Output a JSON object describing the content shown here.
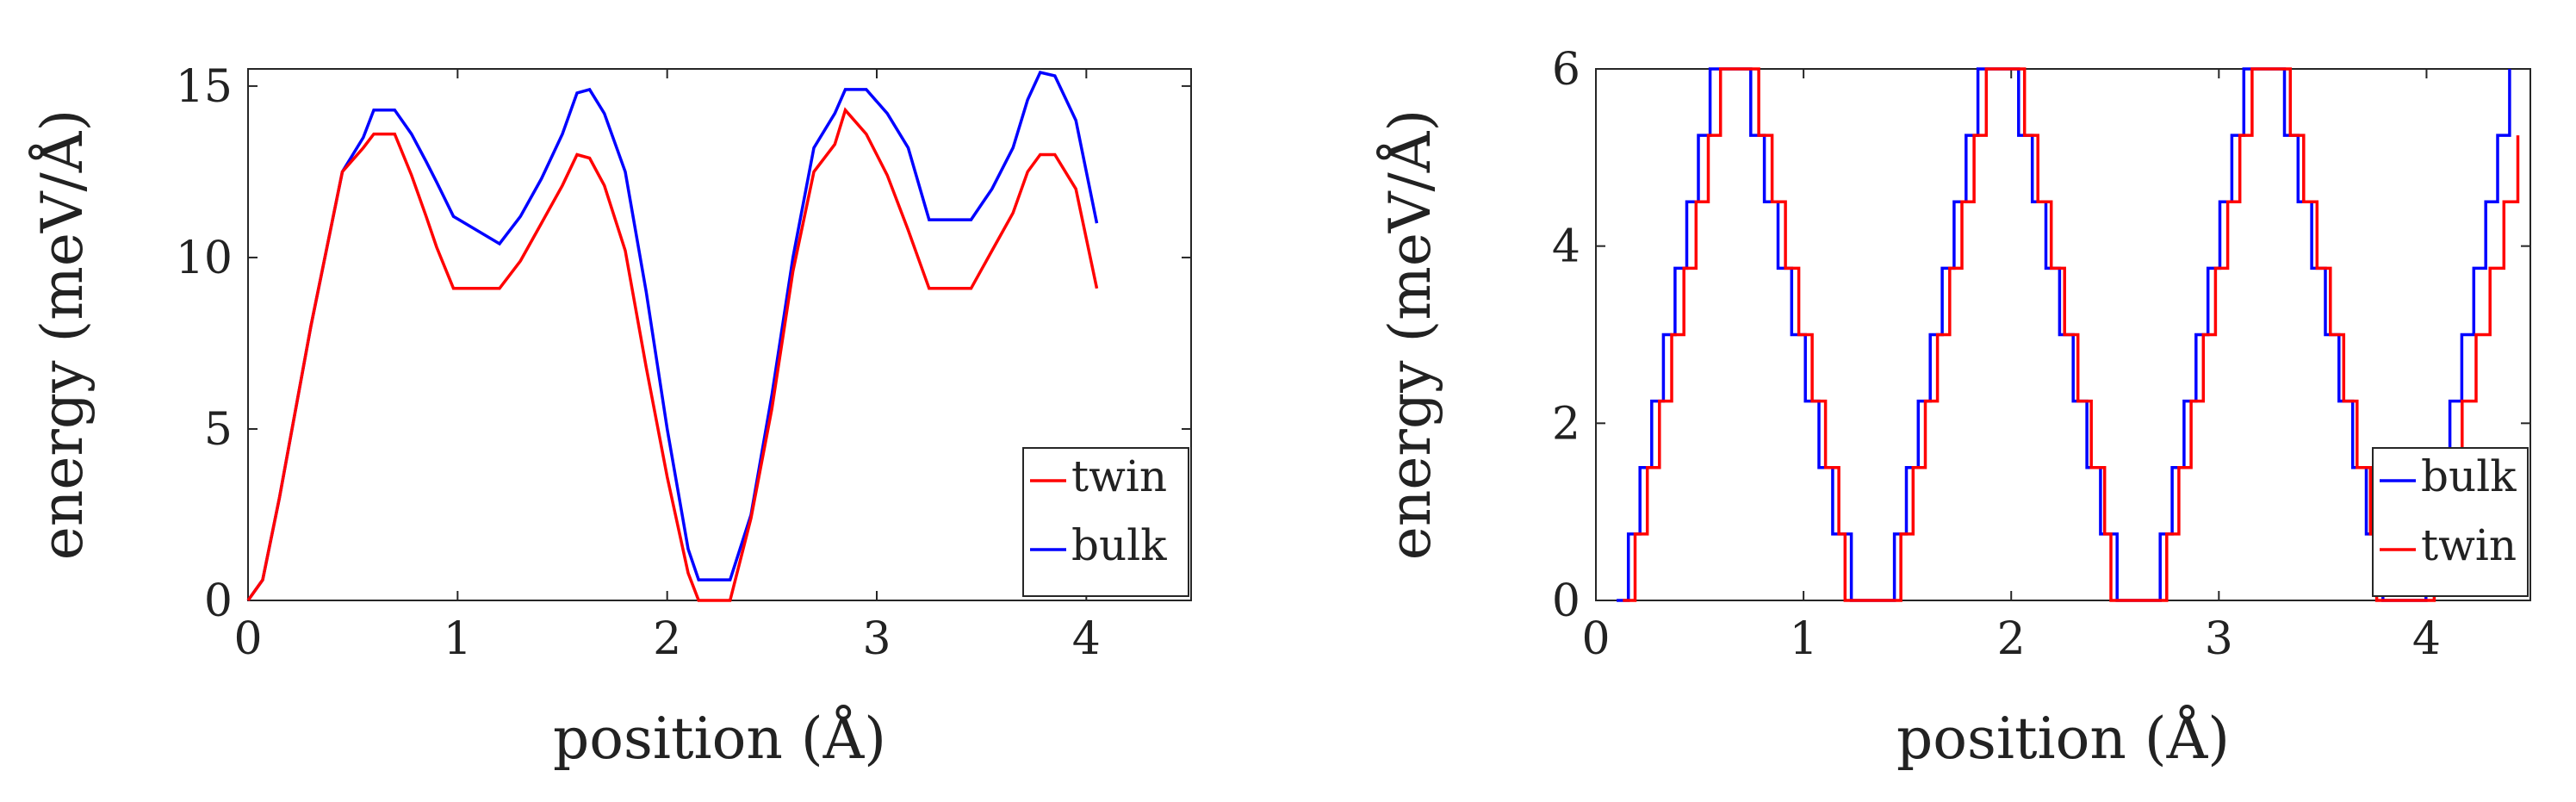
{
  "chart_data": [
    {
      "type": "line",
      "xlabel": "position (Å)",
      "ylabel": "energy (meV/Å)",
      "xlim": [
        0,
        4.5
      ],
      "ylim": [
        0,
        15.5
      ],
      "xticks": [
        0,
        1,
        2,
        3,
        4
      ],
      "yticks": [
        0,
        5,
        10,
        15
      ],
      "xtick_labels": [
        "0",
        "1",
        "2",
        "3",
        "4"
      ],
      "ytick_labels": [
        "0",
        "5",
        "10",
        "15"
      ],
      "legend": {
        "placement": "bottom-right",
        "entries": [
          "twin",
          "bulk"
        ]
      },
      "series": [
        {
          "name": "bulk",
          "color": "#0000ff",
          "x": [
            0,
            0.07,
            0.15,
            0.3,
            0.45,
            0.55,
            0.6,
            0.7,
            0.78,
            0.85,
            0.9,
            0.98,
            1.2,
            1.3,
            1.4,
            1.5,
            1.57,
            1.63,
            1.7,
            1.8,
            1.9,
            2.0,
            2.1,
            2.15,
            2.3,
            2.4,
            2.5,
            2.6,
            2.7,
            2.8,
            2.85,
            2.95,
            3.05,
            3.15,
            3.25,
            3.45,
            3.55,
            3.65,
            3.72,
            3.78,
            3.85,
            3.95,
            4.05
          ],
          "y": [
            0,
            0.6,
            3,
            8,
            12.5,
            13.5,
            14.3,
            14.3,
            13.6,
            12.8,
            12.2,
            11.2,
            10.4,
            11.2,
            12.3,
            13.6,
            14.8,
            14.9,
            14.2,
            12.5,
            9,
            5,
            1.5,
            0.6,
            0.6,
            2.5,
            6,
            10,
            13.2,
            14.2,
            14.9,
            14.9,
            14.2,
            13.2,
            11.1,
            11.1,
            12,
            13.2,
            14.6,
            15.4,
            15.3,
            14,
            11
          ]
        },
        {
          "name": "twin",
          "color": "#ff0000",
          "x": [
            0,
            0.07,
            0.15,
            0.3,
            0.45,
            0.55,
            0.6,
            0.7,
            0.78,
            0.85,
            0.9,
            0.98,
            1.2,
            1.3,
            1.4,
            1.5,
            1.57,
            1.63,
            1.7,
            1.8,
            1.9,
            2.0,
            2.1,
            2.15,
            2.3,
            2.4,
            2.5,
            2.6,
            2.7,
            2.8,
            2.85,
            2.95,
            3.05,
            3.15,
            3.25,
            3.45,
            3.55,
            3.65,
            3.72,
            3.78,
            3.85,
            3.95,
            4.05
          ],
          "y": [
            0,
            0.6,
            3,
            8,
            12.5,
            13.2,
            13.6,
            13.6,
            12.4,
            11.2,
            10.3,
            9.1,
            9.1,
            9.9,
            11.0,
            12.1,
            13.0,
            12.9,
            12.1,
            10.2,
            6.8,
            3.6,
            0.8,
            0,
            0,
            2.4,
            5.6,
            9.6,
            12.5,
            13.3,
            14.3,
            13.6,
            12.4,
            10.8,
            9.1,
            9.1,
            10.2,
            11.3,
            12.5,
            13.0,
            13.0,
            12.0,
            9.1
          ]
        }
      ]
    },
    {
      "type": "line",
      "xlabel": "position (Å)",
      "ylabel": "energy (meV/Å)",
      "xlim": [
        0,
        4.5
      ],
      "ylim": [
        0,
        6
      ],
      "xticks": [
        0,
        1,
        2,
        3,
        4
      ],
      "yticks": [
        0,
        2,
        4,
        6
      ],
      "xtick_labels": [
        "0",
        "1",
        "2",
        "3",
        "4"
      ],
      "ytick_labels": [
        "0",
        "2",
        "4",
        "6"
      ],
      "legend": {
        "placement": "bottom-right",
        "entries": [
          "bulk",
          "twin"
        ]
      },
      "series": [
        {
          "name": "bulk",
          "color": "#0000ff",
          "staircase": true,
          "x": [
            0.1,
            0.55,
            0.68,
            1.14,
            1.23,
            1.38,
            1.84,
            1.97,
            2.43,
            2.51,
            2.66,
            3.12,
            3.25,
            3.71,
            3.79,
            3.94,
            4.4
          ],
          "y": [
            0,
            6,
            6,
            0.75,
            0,
            0,
            6,
            6,
            0.75,
            0,
            0,
            6,
            6,
            0.75,
            0,
            0,
            6
          ]
        },
        {
          "name": "twin",
          "color": "#ff0000",
          "staircase": true,
          "x": [
            0.13,
            0.6,
            0.72,
            1.17,
            1.2,
            1.41,
            1.88,
            2.0,
            2.45,
            2.48,
            2.69,
            3.16,
            3.28,
            3.73,
            3.76,
            3.97,
            4.44
          ],
          "y": [
            0,
            6,
            6,
            0.75,
            0,
            0,
            6,
            6,
            0.75,
            0,
            0,
            6,
            6,
            0.75,
            0,
            0,
            5.25
          ]
        }
      ]
    }
  ]
}
